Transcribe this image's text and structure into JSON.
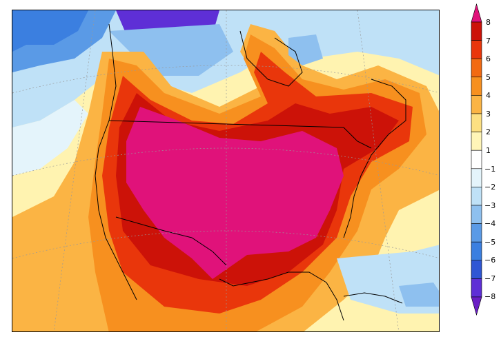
{
  "map": {
    "colors": {
      "neg8": "#6a1fc4",
      "neg7": "#5e2fd6",
      "neg6": "#2f56d4",
      "neg5": "#3b7fe0",
      "neg4": "#5a9ae6",
      "neg3": "#8ec0ef",
      "neg2": "#bfe1f7",
      "neg1": "#e4f4fb",
      "neutral": "#ffffff",
      "pos1": "#fff5b8",
      "pos2": "#fde082",
      "pos3": "#fbb444",
      "pos4": "#f7901f",
      "pos5": "#f26a12",
      "pos6": "#e9360b",
      "pos7": "#cc1208",
      "pos8": "#e0127a"
    }
  },
  "colorbar": {
    "labels": [
      "8",
      "7",
      "6",
      "5",
      "4",
      "3",
      "2",
      "1",
      "−1",
      "−2",
      "−3",
      "−4",
      "−5",
      "−6",
      "−7",
      "−8"
    ]
  }
}
